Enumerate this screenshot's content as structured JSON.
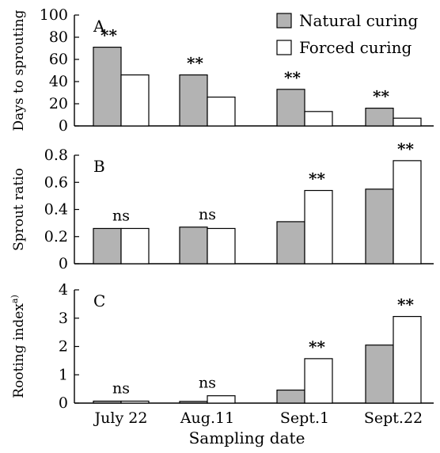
{
  "chart_data": {
    "type": "bar",
    "xlabel": "Sampling date",
    "categories": [
      "July 22",
      "Aug.11",
      "Sept.1",
      "Sept.22"
    ],
    "legend": {
      "placement": "top-right",
      "entries": [
        {
          "name": "Natural curing",
          "color": "#b3b3b3"
        },
        {
          "name": "Forced curing",
          "color": "#ffffff"
        }
      ]
    },
    "panels": [
      {
        "label": "A",
        "ylabel": "Days to sprouting",
        "ylim": [
          0,
          100
        ],
        "yticks": [
          "0",
          "20",
          "40",
          "60",
          "80",
          "100"
        ],
        "series": [
          {
            "name": "Natural curing",
            "values": [
              71,
              46,
              33,
              16
            ]
          },
          {
            "name": "Forced curing",
            "values": [
              46,
              26,
              13,
              7
            ]
          }
        ],
        "annotations": [
          "**",
          "**",
          "**",
          "**"
        ]
      },
      {
        "label": "B",
        "ylabel": "Sprout ratio",
        "ylim": [
          0,
          0.8
        ],
        "yticks": [
          "0",
          "0.2",
          "0.4",
          "0.6",
          "0.8"
        ],
        "series": [
          {
            "name": "Natural curing",
            "values": [
              0.26,
              0.27,
              0.31,
              0.55
            ]
          },
          {
            "name": "Forced curing",
            "values": [
              0.26,
              0.26,
              0.54,
              0.76
            ]
          }
        ],
        "annotations": [
          "ns",
          "ns",
          "**",
          "**"
        ]
      },
      {
        "label": "C",
        "ylabel": "Rooting index",
        "ylabel_sup": "a)",
        "ylim": [
          0,
          4
        ],
        "yticks": [
          "0",
          "1",
          "2",
          "3",
          "4"
        ],
        "series": [
          {
            "name": "Natural curing",
            "values": [
              0.07,
              0.06,
              0.46,
              2.05
            ]
          },
          {
            "name": "Forced curing",
            "values": [
              0.07,
              0.26,
              1.57,
              3.06
            ]
          }
        ],
        "annotations": [
          "ns",
          "ns",
          "**",
          "**"
        ]
      }
    ]
  }
}
